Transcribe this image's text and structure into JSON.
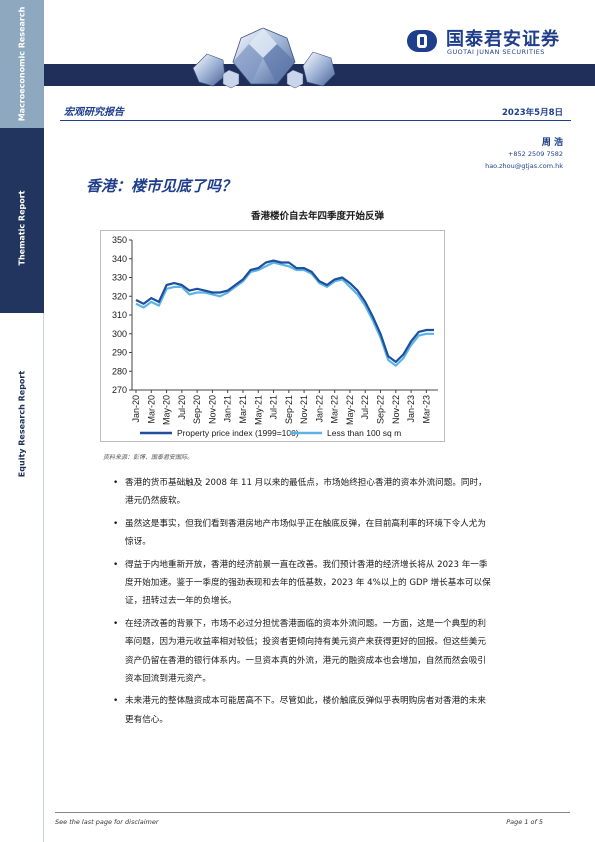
{
  "sidebar": {
    "top_label": "Macroeconomic Research",
    "mid_label": "Thematic Report",
    "bottom_label": "Equity Research Report"
  },
  "header": {
    "logo_cn": "国泰君安证券",
    "logo_en": "GUOTAI JUNAN SECURITIES",
    "report_type": "宏观研究报告",
    "date": "2023年5月8日"
  },
  "author": {
    "name": "周 浩",
    "phone": "+852 2509 7582",
    "email": "hao.zhou@gtjas.com.hk"
  },
  "title": "香港：楼市见底了吗？",
  "chart_title": "香港楼价自去年四季度开始反弹",
  "chart_source": "资料来源：彭博、国泰君安国际。",
  "chart_data": {
    "type": "line",
    "title": "香港楼价自去年四季度开始反弹",
    "ylim": [
      270,
      350
    ],
    "yticks": [
      270,
      280,
      290,
      300,
      310,
      320,
      330,
      340,
      350
    ],
    "xticks": [
      "Jan-20",
      "Mar-20",
      "May-20",
      "Jul-20",
      "Sep-20",
      "Nov-20",
      "Jan-21",
      "Mar-21",
      "May-21",
      "Jul-21",
      "Sep-21",
      "Nov-21",
      "Jan-22",
      "Mar-22",
      "May-22",
      "Jul-22",
      "Sep-22",
      "Nov-22",
      "Jan-23",
      "Mar-23"
    ],
    "legend_position": "bottom",
    "x": [
      "Jan-20",
      "Feb-20",
      "Mar-20",
      "Apr-20",
      "May-20",
      "Jun-20",
      "Jul-20",
      "Aug-20",
      "Sep-20",
      "Oct-20",
      "Nov-20",
      "Dec-20",
      "Jan-21",
      "Feb-21",
      "Mar-21",
      "Apr-21",
      "May-21",
      "Jun-21",
      "Jul-21",
      "Aug-21",
      "Sep-21",
      "Oct-21",
      "Nov-21",
      "Dec-21",
      "Jan-22",
      "Feb-22",
      "Mar-22",
      "Apr-22",
      "May-22",
      "Jun-22",
      "Jul-22",
      "Aug-22",
      "Sep-22",
      "Oct-22",
      "Nov-22",
      "Dec-22",
      "Jan-23",
      "Feb-23",
      "Mar-23",
      "Apr-23"
    ],
    "series": [
      {
        "name": "Property price index (1999=100)",
        "color": "#1f4e9c",
        "values": [
          318,
          316,
          319,
          317,
          326,
          327,
          326,
          323,
          324,
          323,
          322,
          322,
          323,
          326,
          329,
          334,
          335,
          338,
          339,
          338,
          338,
          335,
          335,
          333,
          328,
          326,
          329,
          330,
          327,
          323,
          317,
          309,
          300,
          288,
          285,
          289,
          296,
          301,
          302,
          302
        ]
      },
      {
        "name": "Less than 100 sq m",
        "color": "#5ab4e5",
        "values": [
          316,
          314,
          317,
          315,
          324,
          325,
          325,
          321,
          322,
          322,
          321,
          320,
          322,
          325,
          328,
          333,
          334,
          336,
          338,
          337,
          336,
          334,
          334,
          332,
          327,
          325,
          328,
          329,
          325,
          321,
          315,
          307,
          298,
          286,
          283,
          287,
          294,
          299,
          300,
          300
        ]
      }
    ]
  },
  "bullets": [
    "香港的货币基础触及 2008 年 11 月以来的最低点，市场始终担心香港的资本外流问题。同时，港元仍然疲软。",
    "虽然这是事实，但我们看到香港房地产市场似乎正在触底反弹，在目前高利率的环境下令人尤为惊讶。",
    "得益于内地重新开放，香港的经济前景一直在改善。我们预计香港的经济增长将从 2023 年一季度开始加速。鉴于一季度的强劲表现和去年的低基数，2023 年 4%以上的 GDP 增长基本可以保证，扭转过去一年的负增长。",
    "在经济改善的背景下，市场不必过分担忧香港面临的资本外流问题。一方面，这是一个典型的利率问题，因为港元收益率相对较低；投资者更倾向持有美元资产来获得更好的回报。但这些美元资产仍留在香港的银行体系内。一旦资本真的外流，港元的融资成本也会增加，自然而然会吸引资本回流到港元资产。",
    "未来港元的整体融资成本可能居高不下。尽管如此，楼价触底反弹似乎表明购房者对香港的未来更有信心。"
  ],
  "footer": {
    "left": "See the last page for disclaimer",
    "right": "Page 1 of 5"
  }
}
